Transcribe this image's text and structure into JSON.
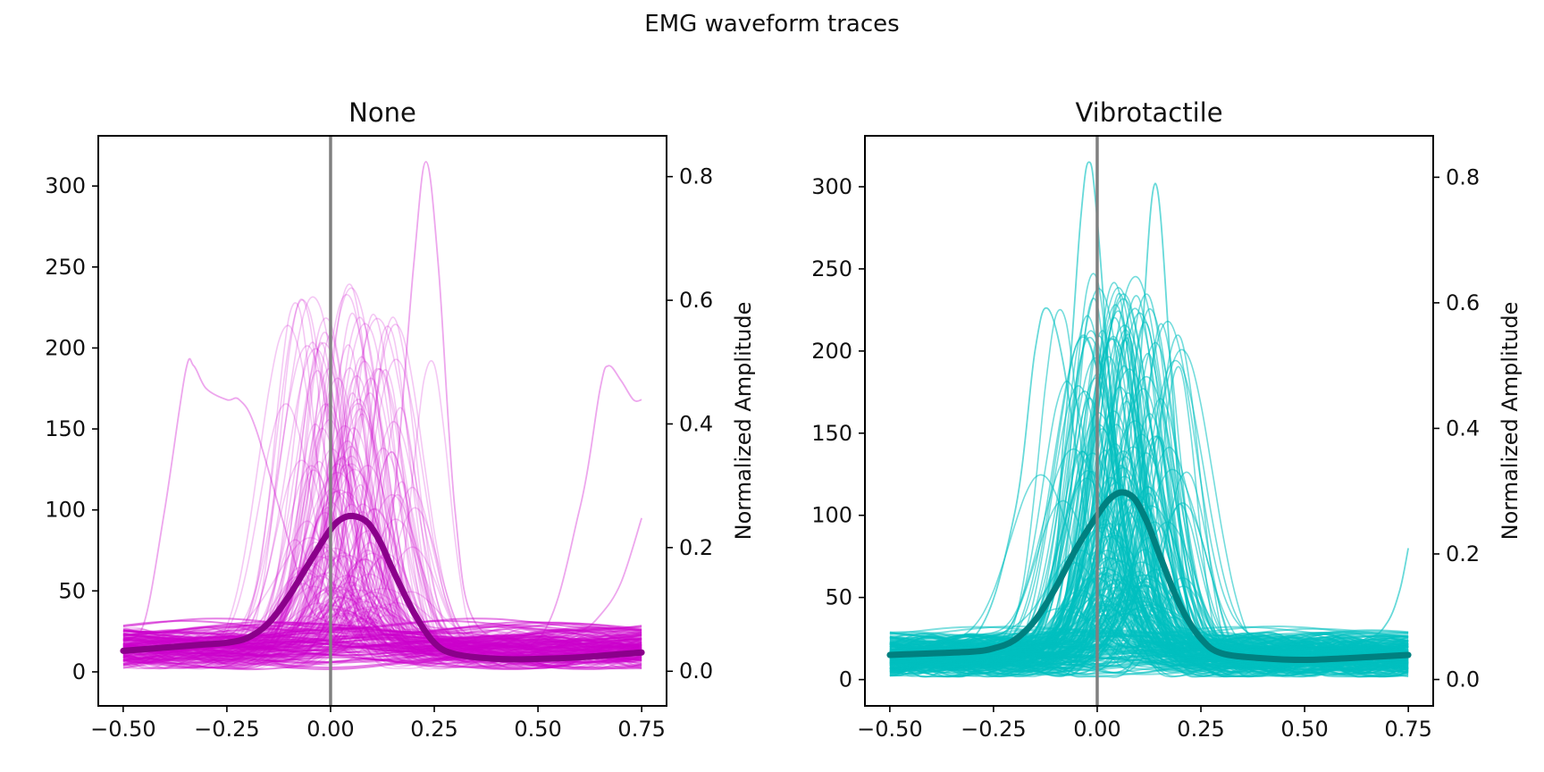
{
  "figure": {
    "title": "EMG waveform traces"
  },
  "chart_data": [
    {
      "type": "line",
      "title": "None",
      "xlabel": "",
      "ylabel": "",
      "ylabel_right": "Normalized Amplitude",
      "xlim": [
        -0.56,
        0.81
      ],
      "ylim": [
        -21,
        331
      ],
      "xticks": [
        -0.5,
        -0.25,
        0.0,
        0.25,
        0.5,
        0.75
      ],
      "xtick_labels": [
        "−0.50",
        "−0.25",
        "0.00",
        "0.25",
        "0.50",
        "0.75"
      ],
      "yticks": [
        0,
        50,
        100,
        150,
        200,
        250,
        300
      ],
      "ytick_labels": [
        "0",
        "50",
        "100",
        "150",
        "200",
        "250",
        "300"
      ],
      "y2lim": [
        -0.056,
        0.866
      ],
      "y2ticks": [
        0.0,
        0.2,
        0.4,
        0.6,
        0.8
      ],
      "y2tick_labels": [
        "0.0",
        "0.2",
        "0.4",
        "0.6",
        "0.8"
      ],
      "vline_x": 0.0,
      "trace_color": "#cc00cc",
      "mean_color": "#8b008b",
      "vline_color": "#808080",
      "mean_trace": {
        "x": [
          -0.5,
          -0.4,
          -0.3,
          -0.25,
          -0.2,
          -0.15,
          -0.1,
          -0.05,
          0.0,
          0.03,
          0.06,
          0.09,
          0.12,
          0.15,
          0.2,
          0.25,
          0.3,
          0.4,
          0.5,
          0.6,
          0.75
        ],
        "y": [
          13,
          15,
          17,
          18,
          21,
          30,
          47,
          68,
          88,
          95,
          96,
          92,
          80,
          63,
          37,
          18,
          11,
          8,
          8,
          9,
          12
        ]
      },
      "highlight_traces": [
        {
          "x": [
            -0.5,
            -0.45,
            -0.4,
            -0.35,
            -0.33,
            -0.3,
            -0.25,
            -0.22,
            -0.18,
            -0.1,
            -0.05,
            0.0,
            0.05,
            0.1,
            0.2,
            0.3,
            0.5,
            0.6,
            0.65,
            0.67,
            0.7,
            0.73,
            0.75
          ],
          "y": [
            20,
            30,
            100,
            185,
            189,
            175,
            168,
            168,
            150,
            80,
            40,
            30,
            25,
            25,
            20,
            18,
            20,
            100,
            175,
            189,
            180,
            168,
            168
          ]
        },
        {
          "x": [
            -0.5,
            0.0,
            0.1,
            0.15,
            0.2,
            0.23,
            0.26,
            0.3,
            0.35,
            0.5,
            0.75
          ],
          "y": [
            20,
            25,
            40,
            100,
            250,
            315,
            250,
            100,
            30,
            20,
            20
          ]
        },
        {
          "x": [
            -0.5,
            0.3,
            0.5,
            0.6,
            0.65,
            0.7,
            0.75
          ],
          "y": [
            25,
            20,
            20,
            25,
            35,
            55,
            95
          ]
        }
      ],
      "bulk_trace_count": 180,
      "peak_range": [
        20,
        290
      ]
    },
    {
      "type": "line",
      "title": "Vibrotactile",
      "xlabel": "",
      "ylabel": "",
      "ylabel_right": "Normalized Amplitude",
      "xlim": [
        -0.56,
        0.81
      ],
      "ylim": [
        -16,
        331
      ],
      "xticks": [
        -0.5,
        -0.25,
        0.0,
        0.25,
        0.5,
        0.75
      ],
      "xtick_labels": [
        "−0.50",
        "−0.25",
        "0.00",
        "0.25",
        "0.50",
        "0.75"
      ],
      "yticks": [
        0,
        50,
        100,
        150,
        200,
        250,
        300
      ],
      "ytick_labels": [
        "0",
        "50",
        "100",
        "150",
        "200",
        "250",
        "300"
      ],
      "y2lim": [
        -0.042,
        0.866
      ],
      "y2ticks": [
        0.0,
        0.2,
        0.4,
        0.6,
        0.8
      ],
      "y2tick_labels": [
        "0.0",
        "0.2",
        "0.4",
        "0.6",
        "0.8"
      ],
      "vline_x": 0.0,
      "trace_color": "#00bfbf",
      "mean_color": "#008080",
      "vline_color": "#808080",
      "mean_trace": {
        "x": [
          -0.5,
          -0.4,
          -0.3,
          -0.25,
          -0.2,
          -0.15,
          -0.1,
          -0.05,
          0.0,
          0.03,
          0.06,
          0.09,
          0.12,
          0.15,
          0.2,
          0.25,
          0.3,
          0.4,
          0.5,
          0.6,
          0.75
        ],
        "y": [
          15,
          16,
          17,
          19,
          24,
          36,
          56,
          80,
          100,
          110,
          114,
          110,
          96,
          76,
          45,
          25,
          16,
          13,
          12,
          13,
          15
        ]
      },
      "highlight_traces": [
        {
          "x": [
            -0.5,
            -0.3,
            -0.2,
            -0.15,
            -0.12,
            -0.08,
            -0.03,
            0.0,
            0.05,
            0.1,
            0.2,
            0.5,
            0.75
          ],
          "y": [
            20,
            25,
            100,
            200,
            226,
            190,
            100,
            50,
            30,
            25,
            20,
            20,
            20
          ]
        },
        {
          "x": [
            -0.5,
            -0.15,
            -0.08,
            -0.04,
            -0.02,
            0.0,
            0.05,
            0.1,
            0.3,
            0.75
          ],
          "y": [
            20,
            30,
            150,
            280,
            315,
            280,
            120,
            40,
            20,
            20
          ]
        },
        {
          "x": [
            -0.5,
            0.05,
            0.1,
            0.14,
            0.18,
            0.22,
            0.3,
            0.75
          ],
          "y": [
            20,
            30,
            180,
            302,
            180,
            40,
            20,
            20
          ]
        },
        {
          "x": [
            -0.5,
            0.5,
            0.65,
            0.7,
            0.73,
            0.75
          ],
          "y": [
            20,
            20,
            25,
            35,
            55,
            80
          ]
        }
      ],
      "bulk_trace_count": 200,
      "peak_range": [
        25,
        295
      ]
    }
  ]
}
